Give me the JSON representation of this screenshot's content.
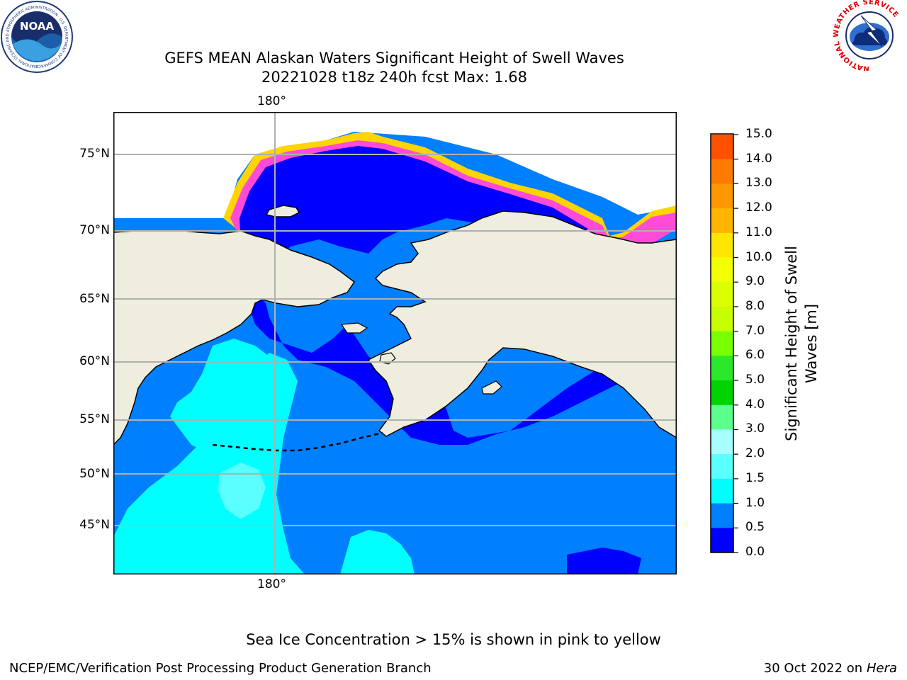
{
  "header": {
    "title_line1": "GEFS MEAN Alaskan Waters Significant Height of Swell Waves",
    "title_line2": "20221028 t18z 240h fcst   Max: 1.68"
  },
  "logos": {
    "noaa_text": "NOAA",
    "noaa_ring_text": "NATIONAL OCEANIC AND ATMOSPHERIC ADMINISTRATION · U.S. DEPARTMENT OF COMMERCE",
    "nws_ring_text": "NATIONAL WEATHER SERVICE"
  },
  "map": {
    "lon_label_top": "180°",
    "lon_label_bottom": "180°",
    "lat_labels": [
      "75°N",
      "70°N",
      "65°N",
      "60°N",
      "55°N",
      "50°N",
      "45°N"
    ],
    "colors": {
      "land": "#efedde",
      "ocean_0_05": "#0000ff",
      "ocean_05_10": "#0080ff",
      "ocean_10_15": "#00ffff",
      "ocean_15_20": "#5affff",
      "ice_pink": "#ff4bd8",
      "ice_yellow": "#ffd400",
      "gridline": "#b0b0b0"
    }
  },
  "colorbar": {
    "label": "Significant Height of Swell Waves [m]",
    "ticks": [
      "15.0",
      "14.0",
      "13.0",
      "12.0",
      "11.0",
      "10.0",
      "9.0",
      "8.0",
      "7.0",
      "6.0",
      "5.0",
      "4.0",
      "3.0",
      "2.0",
      "1.5",
      "1.0",
      "0.5",
      "0.0"
    ],
    "colors_top_to_bottom": [
      "#ff0000",
      "#ff2600",
      "#ff5000",
      "#ff7a00",
      "#ff9800",
      "#ffb400",
      "#ffe600",
      "#f2ff00",
      "#dcff00",
      "#c8ff00",
      "#78ff00",
      "#2be82b",
      "#00d400",
      "#5aff8c",
      "#a8ffff",
      "#5affff",
      "#00ffff",
      "#0080ff",
      "#0000ff"
    ]
  },
  "footer": {
    "sea_ice_note": "Sea Ice Concentration > 15% is shown in pink to yellow",
    "producer": "NCEP/EMC/Verification Post Processing Product Generation Branch",
    "date": "30 Oct 2022 on ",
    "host": "Hera"
  }
}
